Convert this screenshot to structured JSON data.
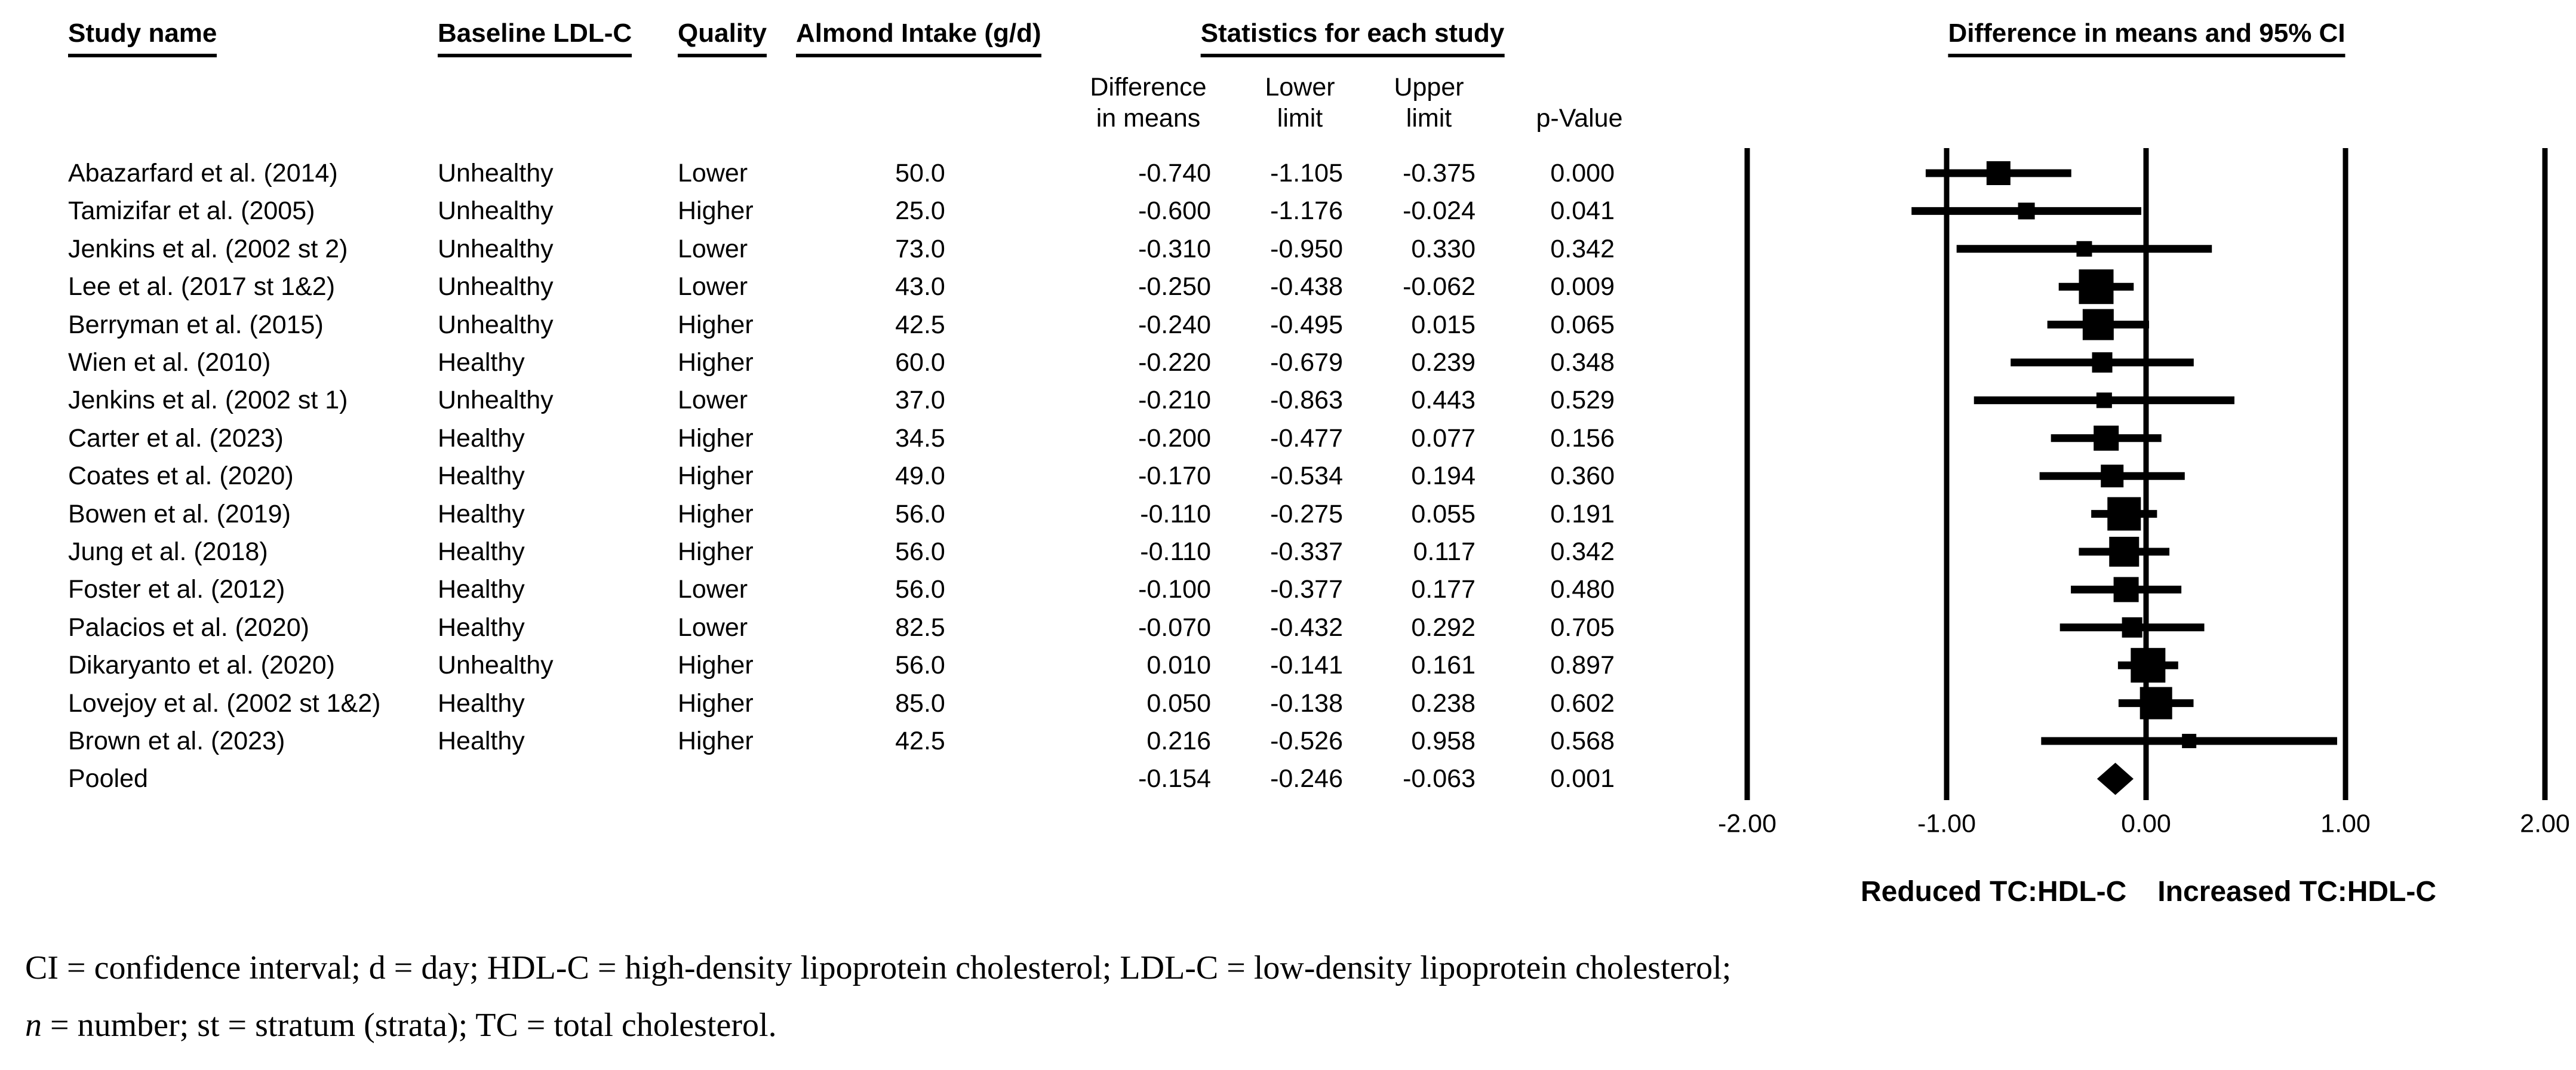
{
  "header": {
    "study": "Study name",
    "baseline": "Baseline LDL-C",
    "quality": "Quality",
    "almond": "Almond Intake (g/d)",
    "stats_group": "Statistics for each study",
    "plot_group": "Difference in means and 95% CI",
    "diff_line1": "Difference",
    "diff_line2": "in means",
    "lower_line1": "Lower",
    "lower_line2": "limit",
    "upper_line1": "Upper",
    "upper_line2": "limit",
    "p_label": "p-Value"
  },
  "direction_labels": {
    "left": "Reduced TC:HDL-C",
    "right": "Increased TC:HDL-C"
  },
  "footnote": {
    "line1": "CI = confidence interval; d = day; HDL-C = high-density lipoprotein cholesterol; LDL-C = low-density lipoprotein cholesterol;",
    "line2_italic": "n",
    "line2_rest": " = number; st = stratum (strata); TC = total cholesterol."
  },
  "chart_data": {
    "type": "scatter",
    "subtype": "forest_plot",
    "title": "Difference in means and 95% CI",
    "xlabel_negative_side": "Reduced TC:HDL-C",
    "xlabel_positive_side": "Increased TC:HDL-C",
    "xlim": [
      -2,
      2
    ],
    "x_ticks": [
      -2,
      -1,
      0,
      1,
      2
    ],
    "x_tick_labels": [
      "-2.00",
      "-1.00",
      "0.00",
      "1.00",
      "2.00"
    ],
    "grid": false,
    "studies": [
      {
        "study": "Abazarfard et al. (2014)",
        "baseline_ldl_c": "Unhealthy",
        "quality": "Lower",
        "almond_intake_g_d": 50.0,
        "diff_in_means": -0.74,
        "lower_limit": -1.105,
        "upper_limit": -0.375,
        "p_value": 0.0,
        "marker_size": 40
      },
      {
        "study": "Tamizifar et al. (2005)",
        "baseline_ldl_c": "Unhealthy",
        "quality": "Higher",
        "almond_intake_g_d": 25.0,
        "diff_in_means": -0.6,
        "lower_limit": -1.176,
        "upper_limit": -0.024,
        "p_value": 0.041,
        "marker_size": 28
      },
      {
        "study": "Jenkins et al. (2002 st 2)",
        "baseline_ldl_c": "Unhealthy",
        "quality": "Lower",
        "almond_intake_g_d": 73.0,
        "diff_in_means": -0.31,
        "lower_limit": -0.95,
        "upper_limit": 0.33,
        "p_value": 0.342,
        "marker_size": 26
      },
      {
        "study": "Lee et al. (2017 st 1&2)",
        "baseline_ldl_c": "Unhealthy",
        "quality": "Lower",
        "almond_intake_g_d": 43.0,
        "diff_in_means": -0.25,
        "lower_limit": -0.438,
        "upper_limit": -0.062,
        "p_value": 0.009,
        "marker_size": 58
      },
      {
        "study": "Berryman et al. (2015)",
        "baseline_ldl_c": "Unhealthy",
        "quality": "Higher",
        "almond_intake_g_d": 42.5,
        "diff_in_means": -0.24,
        "lower_limit": -0.495,
        "upper_limit": 0.015,
        "p_value": 0.065,
        "marker_size": 52
      },
      {
        "study": "Wien et al. (2010)",
        "baseline_ldl_c": "Healthy",
        "quality": "Higher",
        "almond_intake_g_d": 60.0,
        "diff_in_means": -0.22,
        "lower_limit": -0.679,
        "upper_limit": 0.239,
        "p_value": 0.348,
        "marker_size": 34
      },
      {
        "study": "Jenkins et al. (2002 st 1)",
        "baseline_ldl_c": "Unhealthy",
        "quality": "Lower",
        "almond_intake_g_d": 37.0,
        "diff_in_means": -0.21,
        "lower_limit": -0.863,
        "upper_limit": 0.443,
        "p_value": 0.529,
        "marker_size": 26
      },
      {
        "study": "Carter et al. (2023)",
        "baseline_ldl_c": "Healthy",
        "quality": "Higher",
        "almond_intake_g_d": 34.5,
        "diff_in_means": -0.2,
        "lower_limit": -0.477,
        "upper_limit": 0.077,
        "p_value": 0.156,
        "marker_size": 42
      },
      {
        "study": "Coates et al. (2020)",
        "baseline_ldl_c": "Healthy",
        "quality": "Higher",
        "almond_intake_g_d": 49.0,
        "diff_in_means": -0.17,
        "lower_limit": -0.534,
        "upper_limit": 0.194,
        "p_value": 0.36,
        "marker_size": 38
      },
      {
        "study": "Bowen et al. (2019)",
        "baseline_ldl_c": "Healthy",
        "quality": "Higher",
        "almond_intake_g_d": 56.0,
        "diff_in_means": -0.11,
        "lower_limit": -0.275,
        "upper_limit": 0.055,
        "p_value": 0.191,
        "marker_size": 56
      },
      {
        "study": "Jung et al. (2018)",
        "baseline_ldl_c": "Healthy",
        "quality": "Higher",
        "almond_intake_g_d": 56.0,
        "diff_in_means": -0.11,
        "lower_limit": -0.337,
        "upper_limit": 0.117,
        "p_value": 0.342,
        "marker_size": 50
      },
      {
        "study": "Foster et al. (2012)",
        "baseline_ldl_c": "Healthy",
        "quality": "Lower",
        "almond_intake_g_d": 56.0,
        "diff_in_means": -0.1,
        "lower_limit": -0.377,
        "upper_limit": 0.177,
        "p_value": 0.48,
        "marker_size": 42
      },
      {
        "study": "Palacios et al. (2020)",
        "baseline_ldl_c": "Healthy",
        "quality": "Lower",
        "almond_intake_g_d": 82.5,
        "diff_in_means": -0.07,
        "lower_limit": -0.432,
        "upper_limit": 0.292,
        "p_value": 0.705,
        "marker_size": 34
      },
      {
        "study": "Dikaryanto et al. (2020)",
        "baseline_ldl_c": "Unhealthy",
        "quality": "Higher",
        "almond_intake_g_d": 56.0,
        "diff_in_means": 0.01,
        "lower_limit": -0.141,
        "upper_limit": 0.161,
        "p_value": 0.897,
        "marker_size": 58
      },
      {
        "study": "Lovejoy et al. (2002 st 1&2)",
        "baseline_ldl_c": "Healthy",
        "quality": "Higher",
        "almond_intake_g_d": 85.0,
        "diff_in_means": 0.05,
        "lower_limit": -0.138,
        "upper_limit": 0.238,
        "p_value": 0.602,
        "marker_size": 54
      },
      {
        "study": "Brown et al. (2023)",
        "baseline_ldl_c": "Healthy",
        "quality": "Higher",
        "almond_intake_g_d": 42.5,
        "diff_in_means": 0.216,
        "lower_limit": -0.526,
        "upper_limit": 0.958,
        "p_value": 0.568,
        "marker_size": 24
      }
    ],
    "pooled": {
      "study": "Pooled",
      "diff_in_means": -0.154,
      "lower_limit": -0.246,
      "upper_limit": -0.063,
      "p_value": 0.001
    }
  }
}
